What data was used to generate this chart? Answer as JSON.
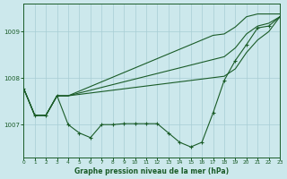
{
  "title": "Graphe pression niveau de la mer (hPa)",
  "background_color": "#cce8ec",
  "grid_color": "#a8cdd4",
  "line_color": "#1a5c28",
  "x_min": 0,
  "x_max": 23,
  "y_min": 1006.3,
  "y_max": 1009.6,
  "yticks": [
    1007,
    1008,
    1009
  ],
  "xticks": [
    0,
    1,
    2,
    3,
    4,
    5,
    6,
    7,
    8,
    9,
    10,
    11,
    12,
    13,
    14,
    15,
    16,
    17,
    18,
    19,
    20,
    21,
    22,
    23
  ],
  "measured": [
    1007.78,
    1007.2,
    1007.2,
    1007.62,
    1007.0,
    1006.82,
    1006.72,
    1007.0,
    1007.0,
    1007.02,
    1007.02,
    1007.02,
    1007.02,
    1006.82,
    1006.62,
    1006.52,
    1006.62,
    1007.25,
    1007.95,
    1008.38,
    1008.72,
    1009.08,
    1009.12,
    1009.32
  ],
  "line_high": [
    1007.78,
    1007.2,
    1007.2,
    1007.62,
    1007.62,
    1007.72,
    1007.82,
    1007.92,
    1008.02,
    1008.12,
    1008.22,
    1008.32,
    1008.42,
    1008.52,
    1008.62,
    1008.72,
    1008.82,
    1008.92,
    1008.95,
    1009.1,
    1009.32,
    1009.38,
    1009.38,
    1009.38
  ],
  "line_mid1": [
    1007.78,
    1007.2,
    1007.2,
    1007.62,
    1007.62,
    1007.68,
    1007.74,
    1007.8,
    1007.86,
    1007.92,
    1007.98,
    1008.04,
    1008.1,
    1008.16,
    1008.22,
    1008.28,
    1008.34,
    1008.4,
    1008.46,
    1008.65,
    1008.95,
    1009.12,
    1009.18,
    1009.32
  ],
  "line_mid2": [
    1007.78,
    1007.2,
    1007.2,
    1007.62,
    1007.62,
    1007.65,
    1007.68,
    1007.71,
    1007.74,
    1007.77,
    1007.8,
    1007.83,
    1007.86,
    1007.89,
    1007.92,
    1007.95,
    1007.98,
    1008.01,
    1008.04,
    1008.2,
    1008.55,
    1008.82,
    1009.0,
    1009.32
  ]
}
